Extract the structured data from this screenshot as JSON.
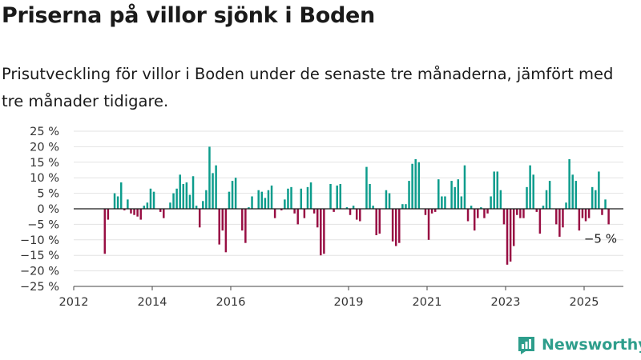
{
  "title": "Priserna på villor sjönk i Boden",
  "subtitle": "Prisutveckling för villor i Boden under de senaste tre månaderna, jämfört med tre månader tidigare.",
  "brand": {
    "name": "Newsworthy",
    "icon": "newsworthy-logo-icon"
  },
  "colors": {
    "positive": "#0c9c8c",
    "negative": "#980e43",
    "zero_line": "#1a1a1a",
    "grid": "#e3e3e3",
    "brand": "#2e9e8c"
  },
  "chart_data": {
    "type": "bar",
    "title": "Priserna på villor sjönk i Boden",
    "subtitle": "Prisutveckling för villor i Boden under de senaste tre månaderna, jämfört med tre månader tidigare.",
    "xlabel": "",
    "ylabel": "",
    "ylim": [
      -25,
      25
    ],
    "y_ticks": [
      25,
      20,
      15,
      10,
      5,
      0,
      -5,
      -10,
      -15,
      -20,
      -25
    ],
    "y_tick_labels": [
      "25 %",
      "20 %",
      "15 %",
      "10 %",
      "5 %",
      "0 %",
      "−5 %",
      "−10 %",
      "−15 %",
      "−20 %",
      "−25 %"
    ],
    "x_tick_labels": [
      {
        "label": "2012",
        "date": "2012-01"
      },
      {
        "label": "2014",
        "date": "2014-01"
      },
      {
        "label": "2016",
        "date": "2016-01"
      },
      {
        "label": "2019",
        "date": "2019-01"
      },
      {
        "label": "2021",
        "date": "2021-01"
      },
      {
        "label": "2023",
        "date": "2023-01"
      },
      {
        "label": "2025",
        "date": "2025-01"
      }
    ],
    "x_range": [
      "2012-01",
      "2025-12"
    ],
    "grid": true,
    "annotation": {
      "text": "−5 %",
      "date": "2025-05",
      "value": -5
    },
    "series": [
      {
        "values": [
          {
            "date": "2012-10",
            "value": -14.5
          },
          {
            "date": "2012-11",
            "value": -3.5
          },
          {
            "date": "2013-01",
            "value": 5
          },
          {
            "date": "2013-02",
            "value": 4
          },
          {
            "date": "2013-03",
            "value": 8.5
          },
          {
            "date": "2013-04",
            "value": -0.5
          },
          {
            "date": "2013-05",
            "value": 3
          },
          {
            "date": "2013-06",
            "value": -1.5
          },
          {
            "date": "2013-07",
            "value": -2
          },
          {
            "date": "2013-08",
            "value": -2.5
          },
          {
            "date": "2013-09",
            "value": -3.5
          },
          {
            "date": "2013-10",
            "value": 1
          },
          {
            "date": "2013-11",
            "value": 2
          },
          {
            "date": "2013-12",
            "value": 6.5
          },
          {
            "date": "2014-01",
            "value": 5.5
          },
          {
            "date": "2014-03",
            "value": -1
          },
          {
            "date": "2014-04",
            "value": -3
          },
          {
            "date": "2014-06",
            "value": 2
          },
          {
            "date": "2014-07",
            "value": 5
          },
          {
            "date": "2014-08",
            "value": 6.5
          },
          {
            "date": "2014-09",
            "value": 11
          },
          {
            "date": "2014-10",
            "value": 8
          },
          {
            "date": "2014-11",
            "value": 8.5
          },
          {
            "date": "2014-12",
            "value": 4.5
          },
          {
            "date": "2015-01",
            "value": 10.5
          },
          {
            "date": "2015-02",
            "value": 1
          },
          {
            "date": "2015-03",
            "value": -6
          },
          {
            "date": "2015-04",
            "value": 2.5
          },
          {
            "date": "2015-05",
            "value": 6
          },
          {
            "date": "2015-06",
            "value": 20
          },
          {
            "date": "2015-07",
            "value": 11.5
          },
          {
            "date": "2015-08",
            "value": 14
          },
          {
            "date": "2015-09",
            "value": -11.5
          },
          {
            "date": "2015-10",
            "value": -7
          },
          {
            "date": "2015-11",
            "value": -14
          },
          {
            "date": "2015-12",
            "value": 5.5
          },
          {
            "date": "2016-01",
            "value": 9
          },
          {
            "date": "2016-02",
            "value": 10
          },
          {
            "date": "2016-04",
            "value": -7
          },
          {
            "date": "2016-05",
            "value": -11
          },
          {
            "date": "2016-06",
            "value": 0.5
          },
          {
            "date": "2016-07",
            "value": 4
          },
          {
            "date": "2016-09",
            "value": 6
          },
          {
            "date": "2016-10",
            "value": 5.5
          },
          {
            "date": "2016-11",
            "value": 3.5
          },
          {
            "date": "2016-12",
            "value": 6
          },
          {
            "date": "2017-01",
            "value": 7.5
          },
          {
            "date": "2017-02",
            "value": -3
          },
          {
            "date": "2017-04",
            "value": -0.5
          },
          {
            "date": "2017-05",
            "value": 3
          },
          {
            "date": "2017-06",
            "value": 6.5
          },
          {
            "date": "2017-07",
            "value": 7
          },
          {
            "date": "2017-08",
            "value": -1.5
          },
          {
            "date": "2017-09",
            "value": -5
          },
          {
            "date": "2017-10",
            "value": 6.5
          },
          {
            "date": "2017-11",
            "value": -3
          },
          {
            "date": "2017-12",
            "value": 7
          },
          {
            "date": "2018-01",
            "value": 8.5
          },
          {
            "date": "2018-02",
            "value": -1.5
          },
          {
            "date": "2018-03",
            "value": -6
          },
          {
            "date": "2018-04",
            "value": -15
          },
          {
            "date": "2018-05",
            "value": -14.5
          },
          {
            "date": "2018-07",
            "value": 8
          },
          {
            "date": "2018-08",
            "value": -1
          },
          {
            "date": "2018-09",
            "value": 7.5
          },
          {
            "date": "2018-10",
            "value": 8
          },
          {
            "date": "2018-12",
            "value": 0.5
          },
          {
            "date": "2019-01",
            "value": -2
          },
          {
            "date": "2019-02",
            "value": 1
          },
          {
            "date": "2019-03",
            "value": -3.5
          },
          {
            "date": "2019-04",
            "value": -4
          },
          {
            "date": "2019-06",
            "value": 13.5
          },
          {
            "date": "2019-07",
            "value": 8
          },
          {
            "date": "2019-08",
            "value": 1
          },
          {
            "date": "2019-09",
            "value": -8.5
          },
          {
            "date": "2019-10",
            "value": -8
          },
          {
            "date": "2019-12",
            "value": 6
          },
          {
            "date": "2020-01",
            "value": 5
          },
          {
            "date": "2020-02",
            "value": -10.5
          },
          {
            "date": "2020-03",
            "value": -12
          },
          {
            "date": "2020-04",
            "value": -11
          },
          {
            "date": "2020-05",
            "value": 1.5
          },
          {
            "date": "2020-06",
            "value": 1.5
          },
          {
            "date": "2020-07",
            "value": 9
          },
          {
            "date": "2020-08",
            "value": 14.5
          },
          {
            "date": "2020-09",
            "value": 16
          },
          {
            "date": "2020-10",
            "value": 15
          },
          {
            "date": "2020-12",
            "value": -2
          },
          {
            "date": "2021-01",
            "value": -10
          },
          {
            "date": "2021-02",
            "value": -1.5
          },
          {
            "date": "2021-03",
            "value": -1
          },
          {
            "date": "2021-04",
            "value": 9.5
          },
          {
            "date": "2021-05",
            "value": 4
          },
          {
            "date": "2021-06",
            "value": 4
          },
          {
            "date": "2021-08",
            "value": 9
          },
          {
            "date": "2021-09",
            "value": 7
          },
          {
            "date": "2021-10",
            "value": 9.5
          },
          {
            "date": "2021-11",
            "value": 4
          },
          {
            "date": "2021-12",
            "value": 14
          },
          {
            "date": "2022-01",
            "value": -4
          },
          {
            "date": "2022-02",
            "value": 1
          },
          {
            "date": "2022-03",
            "value": -7
          },
          {
            "date": "2022-04",
            "value": -3
          },
          {
            "date": "2022-05",
            "value": 0.5
          },
          {
            "date": "2022-06",
            "value": -3
          },
          {
            "date": "2022-07",
            "value": -1.5
          },
          {
            "date": "2022-08",
            "value": 4
          },
          {
            "date": "2022-09",
            "value": 12
          },
          {
            "date": "2022-10",
            "value": 12
          },
          {
            "date": "2022-11",
            "value": 6
          },
          {
            "date": "2022-12",
            "value": -5
          },
          {
            "date": "2023-01",
            "value": -18
          },
          {
            "date": "2023-02",
            "value": -17
          },
          {
            "date": "2023-03",
            "value": -12
          },
          {
            "date": "2023-04",
            "value": -2
          },
          {
            "date": "2023-05",
            "value": -3
          },
          {
            "date": "2023-06",
            "value": -3
          },
          {
            "date": "2023-07",
            "value": 7
          },
          {
            "date": "2023-08",
            "value": 14
          },
          {
            "date": "2023-09",
            "value": 11
          },
          {
            "date": "2023-10",
            "value": -1
          },
          {
            "date": "2023-11",
            "value": -8
          },
          {
            "date": "2023-12",
            "value": 1
          },
          {
            "date": "2024-01",
            "value": 6
          },
          {
            "date": "2024-02",
            "value": 9
          },
          {
            "date": "2024-04",
            "value": -5
          },
          {
            "date": "2024-05",
            "value": -9
          },
          {
            "date": "2024-06",
            "value": -6
          },
          {
            "date": "2024-07",
            "value": 2
          },
          {
            "date": "2024-08",
            "value": 16
          },
          {
            "date": "2024-09",
            "value": 11
          },
          {
            "date": "2024-10",
            "value": 9
          },
          {
            "date": "2024-11",
            "value": -7
          },
          {
            "date": "2024-12",
            "value": -3
          },
          {
            "date": "2025-01",
            "value": -4
          },
          {
            "date": "2025-02",
            "value": -3
          },
          {
            "date": "2025-03",
            "value": 7
          },
          {
            "date": "2025-04",
            "value": 6
          },
          {
            "date": "2025-05",
            "value": 12
          },
          {
            "date": "2025-06",
            "value": -2
          },
          {
            "date": "2025-07",
            "value": 3
          },
          {
            "date": "2025-08",
            "value": -5
          }
        ]
      }
    ]
  }
}
